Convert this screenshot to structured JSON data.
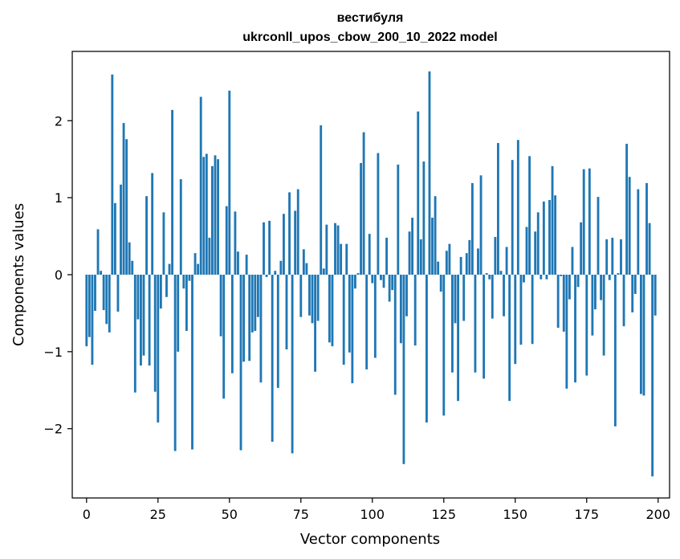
{
  "chart_data": {
    "type": "bar",
    "title": "вестибуля",
    "subtitle": "ukrconll_upos_cbow_200_10_2022 model",
    "xlabel": "Vector components",
    "ylabel": "Components values",
    "xlim": [
      -5,
      204
    ],
    "ylim": [
      -2.9,
      2.9
    ],
    "xticks": [
      0,
      25,
      50,
      75,
      100,
      125,
      150,
      175,
      200
    ],
    "yticks": [
      -2,
      -1,
      0,
      1,
      2
    ],
    "xtick_labels": [
      "0",
      "25",
      "50",
      "75",
      "100",
      "125",
      "150",
      "175",
      "200"
    ],
    "ytick_labels": [
      "−2",
      "−1",
      "0",
      "1",
      "2"
    ],
    "grid": false,
    "color": "#1f77b4",
    "values": [
      -0.93,
      -0.81,
      -1.17,
      -0.47,
      0.59,
      0.05,
      -0.46,
      -0.64,
      -0.75,
      2.6,
      0.93,
      -0.48,
      1.17,
      1.97,
      1.76,
      0.42,
      0.18,
      -1.53,
      -0.58,
      -1.18,
      -1.05,
      1.02,
      -1.18,
      1.32,
      -1.52,
      -1.92,
      -0.44,
      0.81,
      -0.29,
      0.14,
      2.14,
      -2.29,
      -1.0,
      1.24,
      -0.18,
      -0.73,
      -0.08,
      -2.27,
      0.28,
      0.14,
      2.31,
      1.53,
      1.57,
      0.48,
      1.41,
      1.55,
      1.5,
      -0.8,
      -1.61,
      0.89,
      2.39,
      -1.28,
      0.82,
      0.3,
      -2.28,
      -1.13,
      0.26,
      -1.12,
      -0.75,
      -0.73,
      -0.55,
      -1.4,
      0.68,
      -0.03,
      0.7,
      -2.17,
      0.05,
      -1.47,
      0.18,
      0.79,
      -0.97,
      1.07,
      -2.32,
      0.83,
      1.11,
      -0.55,
      0.33,
      0.15,
      -0.53,
      -0.63,
      -1.26,
      -0.6,
      1.94,
      0.08,
      0.65,
      -0.88,
      -0.93,
      0.67,
      0.64,
      0.4,
      -1.17,
      0.4,
      -1.01,
      -1.41,
      -0.18,
      0.02,
      1.45,
      1.85,
      -1.23,
      0.53,
      -0.11,
      -1.08,
      1.58,
      -0.07,
      -0.17,
      0.48,
      -0.35,
      -0.2,
      -1.56,
      1.43,
      -0.89,
      -2.46,
      -0.54,
      0.56,
      0.74,
      -0.92,
      2.12,
      0.46,
      1.47,
      -1.92,
      2.64,
      0.74,
      1.02,
      0.17,
      -0.22,
      -1.83,
      0.31,
      0.4,
      -1.27,
      -0.63,
      -1.64,
      0.23,
      -0.6,
      0.28,
      0.45,
      1.19,
      -1.27,
      0.34,
      1.29,
      -1.35,
      0.02,
      -0.06,
      -0.57,
      0.49,
      1.71,
      0.05,
      -0.54,
      0.36,
      -1.64,
      1.49,
      -1.16,
      1.75,
      -0.91,
      -0.1,
      0.62,
      1.54,
      -0.9,
      0.56,
      0.81,
      -0.06,
      0.95,
      -0.06,
      0.97,
      1.41,
      1.03,
      -0.69,
      -0.02,
      -0.74,
      -1.48,
      -0.32,
      0.36,
      -1.4,
      -0.16,
      0.68,
      1.37,
      -1.31,
      1.38,
      -0.79,
      -0.45,
      1.01,
      -0.33,
      -1.05,
      0.46,
      -0.07,
      0.48,
      -1.97,
      0.02,
      0.46,
      -0.67,
      1.7,
      1.27,
      -0.49,
      -0.25,
      1.11,
      -1.55,
      -1.57,
      1.19,
      0.67,
      -2.62,
      -0.53
    ]
  }
}
